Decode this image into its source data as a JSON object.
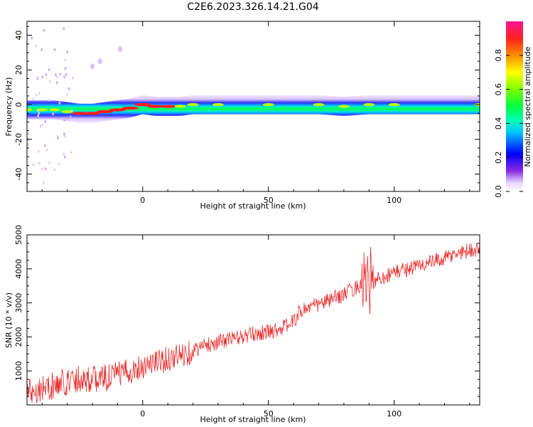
{
  "title": "C2E6.2023.326.14.21.G04",
  "chart_data": [
    {
      "type": "heatmap",
      "xlabel": "Height of straight line (km)",
      "ylabel": "Frequency (Hz)",
      "xlim": [
        -46,
        134
      ],
      "ylim": [
        -50,
        48
      ],
      "x_ticks": [
        0,
        50,
        100
      ],
      "y_ticks": [
        -40,
        -20,
        0,
        20,
        40
      ],
      "colorbar": {
        "label": "Normalized spectral amplitude",
        "range": [
          0,
          1
        ],
        "ticks": [
          "0.0",
          "0.2",
          "0.4",
          "0.6",
          "0.8"
        ]
      },
      "ridge": {
        "description_values": "frequency (Hz) of peak ridge vs height (km)",
        "x": [
          -46,
          -40,
          -35,
          -30,
          -25,
          -20,
          -15,
          -10,
          -5,
          0,
          5,
          10,
          15,
          20,
          30,
          50,
          70,
          80,
          90,
          100,
          134
        ],
        "y": [
          -3,
          -3,
          -3,
          -4,
          -5,
          -5,
          -4,
          -3,
          -2,
          0,
          -1,
          -1,
          -1,
          0,
          0,
          0,
          0,
          -1,
          0,
          0,
          0
        ]
      }
    },
    {
      "type": "line",
      "xlabel": "Height of straight line (km)",
      "ylabel": "SNR (10 * v/v)",
      "xlim": [
        -46,
        134
      ],
      "ylim": [
        0,
        5000
      ],
      "x_ticks": [
        0,
        50,
        100
      ],
      "y_ticks": [
        1000,
        2000,
        3000,
        4000,
        5000
      ],
      "series": [
        {
          "color": "#e83030",
          "x": [
            -46,
            -40,
            -35,
            -30,
            -25,
            -20,
            -15,
            -10,
            -5,
            0,
            5,
            10,
            15,
            20,
            25,
            30,
            35,
            40,
            45,
            50,
            55,
            60,
            62,
            65,
            70,
            75,
            80,
            85,
            88,
            90,
            92,
            95,
            100,
            105,
            110,
            115,
            120,
            125,
            130,
            134
          ],
          "y": [
            400,
            500,
            550,
            700,
            800,
            750,
            800,
            900,
            1000,
            1150,
            1250,
            1350,
            1450,
            1600,
            1750,
            1850,
            1950,
            2000,
            2100,
            2150,
            2250,
            2450,
            2700,
            2850,
            2950,
            3100,
            3250,
            3450,
            3600,
            3550,
            3650,
            3750,
            3900,
            4000,
            4100,
            4200,
            4300,
            4450,
            4550,
            4600
          ]
        }
      ]
    }
  ]
}
